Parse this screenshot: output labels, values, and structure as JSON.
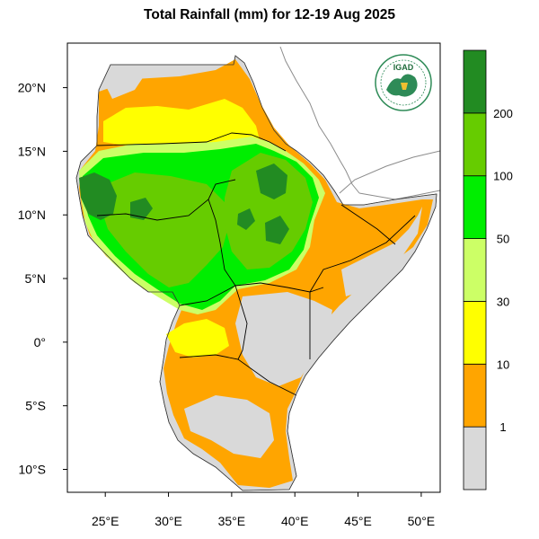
{
  "title": "Total Rainfall (mm) for 12-19 Aug 2025",
  "logo": {
    "text": "IGAD",
    "name": "igad-logo"
  },
  "map": {
    "lon_range": [
      22,
      51.5
    ],
    "lat_range": [
      -11.8,
      23.5
    ],
    "lon_ticks": [
      {
        "value": 25,
        "label": "25°E"
      },
      {
        "value": 30,
        "label": "30°E"
      },
      {
        "value": 35,
        "label": "35°E"
      },
      {
        "value": 40,
        "label": "40°E"
      },
      {
        "value": 45,
        "label": "45°E"
      },
      {
        "value": 50,
        "label": "50°E"
      }
    ],
    "lat_ticks": [
      {
        "value": 20,
        "label": "20°N"
      },
      {
        "value": 15,
        "label": "15°N"
      },
      {
        "value": 10,
        "label": "10°N"
      },
      {
        "value": 5,
        "label": "5°N"
      },
      {
        "value": 0,
        "label": "0°"
      },
      {
        "value": -5,
        "label": "5°S"
      },
      {
        "value": -10,
        "label": "10°S"
      }
    ]
  },
  "legend": {
    "bins": [
      {
        "color": "#d9d9d9"
      },
      {
        "color": "#ffa500"
      },
      {
        "color": "#ffff00"
      },
      {
        "color": "#ccff66"
      },
      {
        "color": "#00ee00"
      },
      {
        "color": "#66cc00"
      },
      {
        "color": "#228b22"
      }
    ],
    "labels": [
      "1",
      "10",
      "30",
      "50",
      "100",
      "200"
    ]
  },
  "colors": {
    "no_rain": "#d9d9d9",
    "r1_10": "#ffa500",
    "r10_30": "#ffff00",
    "r30_50": "#ccff66",
    "r50_100": "#00ee00",
    "r100_200": "#66cc00",
    "r200_plus": "#228b22"
  }
}
